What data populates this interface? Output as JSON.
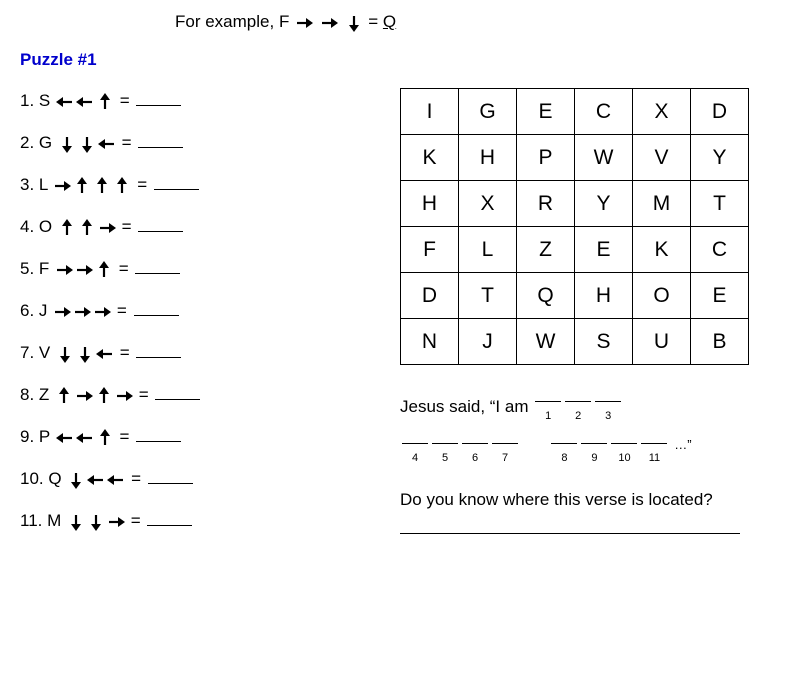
{
  "example": {
    "prefix": "For example, ",
    "letter": "F",
    "arrows": [
      "right",
      "right",
      "down"
    ],
    "equals": " = ",
    "answer": "Q"
  },
  "puzzle_title": "Puzzle #1",
  "clues": [
    {
      "num": "1.",
      "letter": "S",
      "arrows": [
        "left",
        "left",
        "up"
      ]
    },
    {
      "num": "2.",
      "letter": "G",
      "arrows": [
        "down",
        "down",
        "left"
      ]
    },
    {
      "num": "3.",
      "letter": "L",
      "arrows": [
        "right",
        "up",
        "up",
        "up"
      ]
    },
    {
      "num": "4.",
      "letter": "O",
      "arrows": [
        "up",
        "up",
        "right"
      ]
    },
    {
      "num": "5.",
      "letter": "F",
      "arrows": [
        "right",
        "right",
        "up"
      ]
    },
    {
      "num": "6.",
      "letter": "J",
      "arrows": [
        "right",
        "right",
        "right"
      ]
    },
    {
      "num": "7.",
      "letter": "V",
      "arrows": [
        "down",
        "down",
        "left"
      ]
    },
    {
      "num": "8.",
      "letter": "Z",
      "arrows": [
        "up",
        "right",
        "up",
        "right"
      ]
    },
    {
      "num": "9.",
      "letter": "P",
      "arrows": [
        "left",
        "left",
        "up"
      ]
    },
    {
      "num": "10.",
      "letter": "Q",
      "arrows": [
        "down",
        "left",
        "left"
      ]
    },
    {
      "num": "11.",
      "letter": "M",
      "arrows": [
        "down",
        "down",
        "right"
      ]
    }
  ],
  "equals_text": " = ",
  "grid": [
    [
      "I",
      "G",
      "E",
      "C",
      "X",
      "D"
    ],
    [
      "K",
      "H",
      "P",
      "W",
      "V",
      "Y"
    ],
    [
      "H",
      "X",
      "R",
      "Y",
      "M",
      "T"
    ],
    [
      "F",
      "L",
      "Z",
      "E",
      "K",
      "C"
    ],
    [
      "D",
      "T",
      "Q",
      "H",
      "O",
      "E"
    ],
    [
      "N",
      "J",
      "W",
      "S",
      "U",
      "B"
    ]
  ],
  "verse": {
    "prefix": "Jesus said, “I am",
    "group1": [
      "1",
      "2",
      "3"
    ],
    "group2": [
      "4",
      "5",
      "6",
      "7"
    ],
    "group3": [
      "8",
      "9",
      "10",
      "11"
    ],
    "suffix": "…”"
  },
  "question": "Do you know where this verse is located?",
  "arrow_colors": {
    "stroke": "#000000",
    "fill": "#000000"
  }
}
